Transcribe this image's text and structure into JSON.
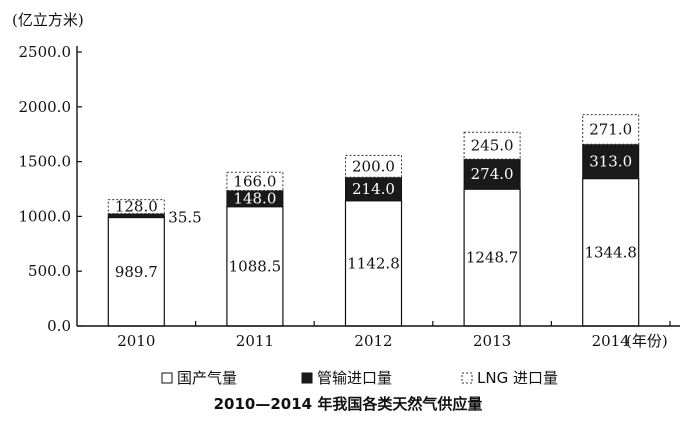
{
  "chart_data": {
    "type": "bar",
    "stacked": true,
    "title": "2010—2014 年我国各类天然气供应量",
    "unit_label": "(亿立方米)",
    "x_suffix": "(年份)",
    "categories": [
      "2010",
      "2011",
      "2012",
      "2013",
      "2014"
    ],
    "ylim": [
      0,
      2500
    ],
    "y_ticks": [
      "0.0",
      "500.0",
      "1000.0",
      "1500.0",
      "2000.0",
      "2500.0"
    ],
    "series": [
      {
        "name": "国产气量",
        "values": [
          989.7,
          1088.5,
          1142.8,
          1248.7,
          1344.8
        ],
        "labels": [
          "989.7",
          "1088.5",
          "1142.8",
          "1248.7",
          "1344.8"
        ],
        "style": "white",
        "color": "#ffffff"
      },
      {
        "name": "管输进口量",
        "values": [
          35.5,
          148.0,
          214.0,
          274.0,
          313.0
        ],
        "labels": [
          "35.5",
          "148.0",
          "214.0",
          "274.0",
          "313.0"
        ],
        "style": "black",
        "color": "#1a1a1a"
      },
      {
        "name": "LNG 进口量",
        "values": [
          128.0,
          166.0,
          200.0,
          245.0,
          271.0
        ],
        "labels": [
          "128.0",
          "166.0",
          "200.0",
          "245.0",
          "271.0"
        ],
        "style": "dotted",
        "color": "#ffffff"
      }
    ],
    "grid": false,
    "legend_position": "bottom"
  }
}
